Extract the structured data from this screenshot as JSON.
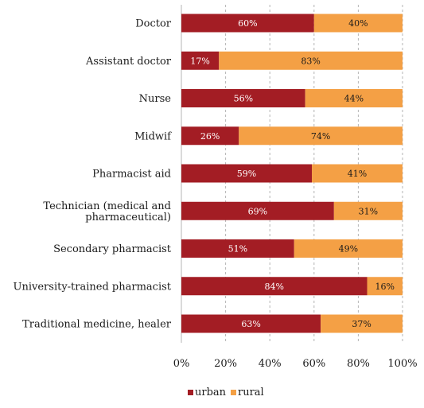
{
  "chart_data": {
    "type": "bar",
    "orientation": "horizontal",
    "stacked": true,
    "percent_stacked": true,
    "categories": [
      "Doctor",
      "Assistant doctor",
      "Nurse",
      "Midwif",
      "Pharmacist aid",
      [
        "Technician (medical and",
        "pharmaceutical)"
      ],
      "Secondary pharmacist",
      "University-trained pharmacist",
      "Traditional medicine, healer"
    ],
    "series": [
      {
        "name": "urban",
        "color": "#a31d24",
        "values": [
          60,
          17,
          56,
          26,
          59,
          69,
          51,
          84,
          63
        ]
      },
      {
        "name": "rural",
        "color": "#f4a045",
        "values": [
          40,
          83,
          44,
          74,
          41,
          31,
          49,
          16,
          37
        ]
      }
    ],
    "value_suffix": "%",
    "xlim": [
      0,
      100
    ],
    "x_ticks": [
      "0%",
      "20%",
      "40%",
      "60%",
      "80%",
      "100%"
    ],
    "title": "",
    "xlabel": "",
    "ylabel": "",
    "grid": "vertical dashed",
    "legend_position": "bottom-center"
  }
}
